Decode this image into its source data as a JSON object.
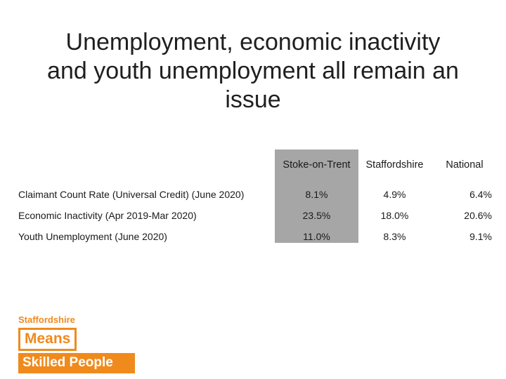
{
  "slide": {
    "title_line1": "Unemployment, economic inactivity",
    "title_line2": "and youth unemployment all remain an",
    "title_line3": "issue"
  },
  "table": {
    "headers": [
      "Stoke-on-Trent",
      "Staffordshire",
      "National"
    ],
    "rows": [
      {
        "label": "Claimant Count Rate (Universal Credit) (June 2020)",
        "values": [
          "8.1%",
          "4.9%",
          "6.4%"
        ]
      },
      {
        "label": "Economic Inactivity (Apr 2019-Mar 2020)",
        "values": [
          "23.5%",
          "18.0%",
          "20.6%"
        ]
      },
      {
        "label": "Youth Unemployment (June 2020)",
        "values": [
          "11.0%",
          "8.3%",
          "9.1%"
        ]
      }
    ],
    "highlight_color": "#a6a6a6"
  },
  "logo": {
    "line1": "Staffordshire",
    "line2": "Means",
    "line3": "Skilled People",
    "accent_color": "#f08a1c"
  }
}
